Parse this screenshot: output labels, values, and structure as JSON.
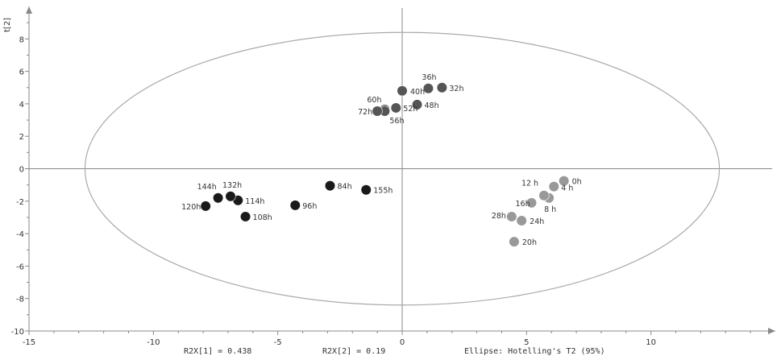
{
  "chart_data": {
    "type": "scatter",
    "ylabel": "t[2]",
    "xlim": [
      -15,
      15
    ],
    "ylim": [
      -10,
      10
    ],
    "x_ticks": [
      -15,
      -10,
      -5,
      0,
      5,
      10
    ],
    "y_ticks": [
      -10,
      -8,
      -6,
      -4,
      -2,
      0,
      2,
      4,
      6,
      8
    ],
    "ellipse": {
      "semi_axis_x": 12.75,
      "semi_axis_y": 8.4
    },
    "footer": {
      "r2x1": "R2X[1] = 0.438",
      "r2x2": "R2X[2] = 0.19",
      "ellipse_note": "Ellipse: Hotelling's T2 (95%)"
    },
    "colors": {
      "early": "#999999",
      "mid": "#555555",
      "late": "#1a1a1a",
      "ellipse": "#aaaaaa"
    },
    "points": [
      {
        "label": "0h",
        "x": 6.5,
        "y": -0.75,
        "group": "early"
      },
      {
        "label": "4 h",
        "x": 6.1,
        "y": -1.1,
        "group": "early"
      },
      {
        "label": "8 h",
        "x": 5.9,
        "y": -1.8,
        "group": "early"
      },
      {
        "label": "12 h",
        "x": 5.7,
        "y": -1.65,
        "group": "early"
      },
      {
        "label": "16h",
        "x": 5.2,
        "y": -2.1,
        "group": "early"
      },
      {
        "label": "20h",
        "x": 4.5,
        "y": -4.5,
        "group": "early"
      },
      {
        "label": "24h",
        "x": 4.8,
        "y": -3.2,
        "group": "early"
      },
      {
        "label": "28h",
        "x": 4.4,
        "y": -2.95,
        "group": "early"
      },
      {
        "label": "32h",
        "x": 1.6,
        "y": 5.0,
        "group": "mid"
      },
      {
        "label": "36h",
        "x": 1.05,
        "y": 4.95,
        "group": "mid"
      },
      {
        "label": "40h",
        "x": 0.0,
        "y": 4.8,
        "group": "mid"
      },
      {
        "label": "48h",
        "x": 0.6,
        "y": 3.95,
        "group": "mid"
      },
      {
        "label": "52h",
        "x": -0.25,
        "y": 3.75,
        "group": "mid"
      },
      {
        "label": "56h",
        "x": -0.7,
        "y": 3.65,
        "group": "mid"
      },
      {
        "label": "60h",
        "x": -0.7,
        "y": 3.55,
        "group": "mid"
      },
      {
        "label": "72h",
        "x": -1.0,
        "y": 3.55,
        "group": "mid"
      },
      {
        "label": "84h",
        "x": -2.9,
        "y": -1.05,
        "group": "late"
      },
      {
        "label": "96h",
        "x": -4.3,
        "y": -2.25,
        "group": "late"
      },
      {
        "label": "108h",
        "x": -6.3,
        "y": -2.95,
        "group": "late"
      },
      {
        "label": "114h",
        "x": -6.6,
        "y": -1.95,
        "group": "late"
      },
      {
        "label": "120h",
        "x": -7.9,
        "y": -2.3,
        "group": "late"
      },
      {
        "label": "132h",
        "x": -6.9,
        "y": -1.7,
        "group": "late"
      },
      {
        "label": "144h",
        "x": -7.4,
        "y": -1.8,
        "group": "late"
      },
      {
        "label": "155h",
        "x": -1.45,
        "y": -1.3,
        "group": "late"
      }
    ]
  }
}
